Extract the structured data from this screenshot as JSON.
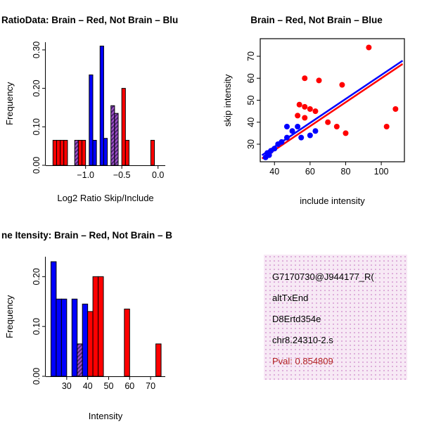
{
  "colors": {
    "red": "#ff0000",
    "blue": "#0000ff",
    "purple": "#a050c8",
    "hatch_line": "#40206a",
    "axis": "#000000",
    "pval_text": "#b22222",
    "info_bg": "#f7e9f5",
    "info_dot": "#dcaad9"
  },
  "chart_data": [
    {
      "id": "ratio-hist",
      "type": "bar",
      "title": "RatioData: Brain – Red, Not Brain – Blu",
      "xlabel": "Log2 Ratio Skip/Include",
      "ylabel": "Frequency",
      "xlim": [
        -1.55,
        0.1
      ],
      "ylim": [
        0,
        0.32
      ],
      "xticks": [
        -1.0,
        -0.5,
        0.0
      ],
      "xtick_labels": [
        "−1.0",
        "−0.5",
        "0.0"
      ],
      "yticks": [
        0,
        0.1,
        0.2,
        0.3
      ],
      "ytick_labels": [
        "0.00",
        "0.10",
        "0.20",
        "0.30"
      ],
      "bar_width": 0.05,
      "grid": false,
      "bars": [
        {
          "x": -1.45,
          "h": 0.065,
          "c": "red"
        },
        {
          "x": -1.4,
          "h": 0.065,
          "c": "red"
        },
        {
          "x": -1.35,
          "h": 0.065,
          "c": "red"
        },
        {
          "x": -1.3,
          "h": 0.065,
          "c": "red"
        },
        {
          "x": -1.15,
          "h": 0.065,
          "c": "purple",
          "hatch": true
        },
        {
          "x": -1.1,
          "h": 0.065,
          "c": "red"
        },
        {
          "x": -1.05,
          "h": 0.065,
          "c": "red"
        },
        {
          "x": -0.95,
          "h": 0.235,
          "c": "blue"
        },
        {
          "x": -0.9,
          "h": 0.065,
          "c": "blue"
        },
        {
          "x": -0.8,
          "h": 0.31,
          "c": "blue"
        },
        {
          "x": -0.75,
          "h": 0.07,
          "c": "blue"
        },
        {
          "x": -0.65,
          "h": 0.155,
          "c": "purple",
          "hatch": true
        },
        {
          "x": -0.6,
          "h": 0.135,
          "c": "purple",
          "hatch": true
        },
        {
          "x": -0.5,
          "h": 0.2,
          "c": "red"
        },
        {
          "x": -0.45,
          "h": 0.065,
          "c": "red"
        },
        {
          "x": -0.1,
          "h": 0.065,
          "c": "red"
        }
      ]
    },
    {
      "id": "scatter",
      "type": "scatter",
      "title": "Brain – Red, Not Brain – Blue",
      "xlabel": "include intensity",
      "ylabel": "skip intensity",
      "xlim": [
        32,
        113
      ],
      "ylim": [
        22,
        78
      ],
      "xticks": [
        40,
        60,
        80,
        100
      ],
      "xtick_labels": [
        "40",
        "60",
        "80",
        "100"
      ],
      "yticks": [
        30,
        40,
        50,
        60,
        70
      ],
      "ytick_labels": [
        "30",
        "40",
        "50",
        "60",
        "70"
      ],
      "box": true,
      "grid": false,
      "series": [
        {
          "name": "brain",
          "color": "red",
          "points": [
            [
              37,
              26
            ],
            [
              53,
              43
            ],
            [
              54,
              48
            ],
            [
              57,
              47
            ],
            [
              57,
              60
            ],
            [
              57,
              42
            ],
            [
              60,
              46
            ],
            [
              63,
              45
            ],
            [
              65,
              59
            ],
            [
              70,
              40
            ],
            [
              75,
              38
            ],
            [
              78,
              57
            ],
            [
              80,
              35
            ],
            [
              93,
              74
            ],
            [
              103,
              38
            ],
            [
              108,
              46
            ]
          ]
        },
        {
          "name": "not-brain",
          "color": "blue",
          "points": [
            [
              35,
              24
            ],
            [
              36,
              26
            ],
            [
              37,
              25
            ],
            [
              38,
              27
            ],
            [
              40,
              28
            ],
            [
              42,
              30
            ],
            [
              44,
              31
            ],
            [
              47,
              33
            ],
            [
              47,
              38
            ],
            [
              50,
              36
            ],
            [
              53,
              38
            ],
            [
              55,
              33
            ],
            [
              60,
              34
            ],
            [
              63,
              36
            ]
          ]
        }
      ],
      "lines": [
        {
          "name": "fit-brain",
          "color": "red",
          "x1": 33,
          "y1": 23.5,
          "x2": 112,
          "y2": 66.5
        },
        {
          "name": "fit-not-brain",
          "color": "blue",
          "x1": 33,
          "y1": 25,
          "x2": 112,
          "y2": 68
        }
      ]
    },
    {
      "id": "intensity-hist",
      "type": "bar",
      "title": "ne Itensity: Brain – Red, Not Brain – B",
      "xlabel": "Intensity",
      "ylabel": "Frequency",
      "xlim": [
        20,
        77
      ],
      "ylim": [
        0,
        0.24
      ],
      "xticks": [
        30,
        40,
        50,
        60,
        70
      ],
      "xtick_labels": [
        "30",
        "40",
        "50",
        "60",
        "70"
      ],
      "yticks": [
        0,
        0.1,
        0.2
      ],
      "ytick_labels": [
        "0.00",
        "0.10",
        "0.20"
      ],
      "bar_width": 2.5,
      "grid": false,
      "bars": [
        {
          "x": 22.5,
          "h": 0.23,
          "c": "blue"
        },
        {
          "x": 25.0,
          "h": 0.155,
          "c": "blue"
        },
        {
          "x": 27.5,
          "h": 0.155,
          "c": "blue"
        },
        {
          "x": 32.5,
          "h": 0.155,
          "c": "blue"
        },
        {
          "x": 35.0,
          "h": 0.065,
          "c": "purple",
          "hatch": true
        },
        {
          "x": 37.5,
          "h": 0.145,
          "c": "blue"
        },
        {
          "x": 40.0,
          "h": 0.13,
          "c": "red"
        },
        {
          "x": 42.5,
          "h": 0.2,
          "c": "red"
        },
        {
          "x": 45.0,
          "h": 0.2,
          "c": "red"
        },
        {
          "x": 57.5,
          "h": 0.135,
          "c": "red"
        },
        {
          "x": 72.5,
          "h": 0.065,
          "c": "red"
        }
      ]
    }
  ],
  "info_box": {
    "lines": [
      "G7170730@J944177_R(",
      "altTxEnd",
      "D8Ertd354e",
      "chr8.24310-2.s"
    ],
    "pval_line": "Pval: 0.854809"
  }
}
